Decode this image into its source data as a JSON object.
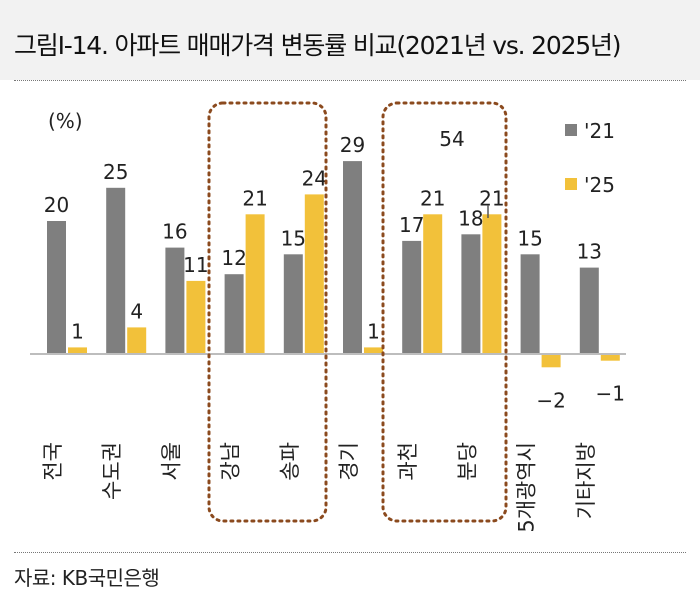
{
  "header": {
    "title": "그림Ⅰ-14. 아파트 매매가격 변동률 비교(2021년 vs. 2025년)"
  },
  "footer": {
    "source": "자료: KB국민은행"
  },
  "chart_data": {
    "type": "bar",
    "unit_label": "(%)",
    "categories": [
      "전국",
      "수도권",
      "서울",
      "강남",
      "송파",
      "경기",
      "과천",
      "분당",
      "5개광역시",
      "기타지방"
    ],
    "series": [
      {
        "name": "'21",
        "color": "#7f7f7f",
        "values": [
          20,
          25,
          16,
          12,
          15,
          29,
          17,
          18,
          15,
          13
        ]
      },
      {
        "name": "'25",
        "color": "#f2c13a",
        "values": [
          1,
          4,
          11,
          21,
          24,
          1,
          21,
          21,
          -2,
          -1
        ]
      }
    ],
    "annotation": "54",
    "legend_position": "top-right",
    "grid": false
  }
}
